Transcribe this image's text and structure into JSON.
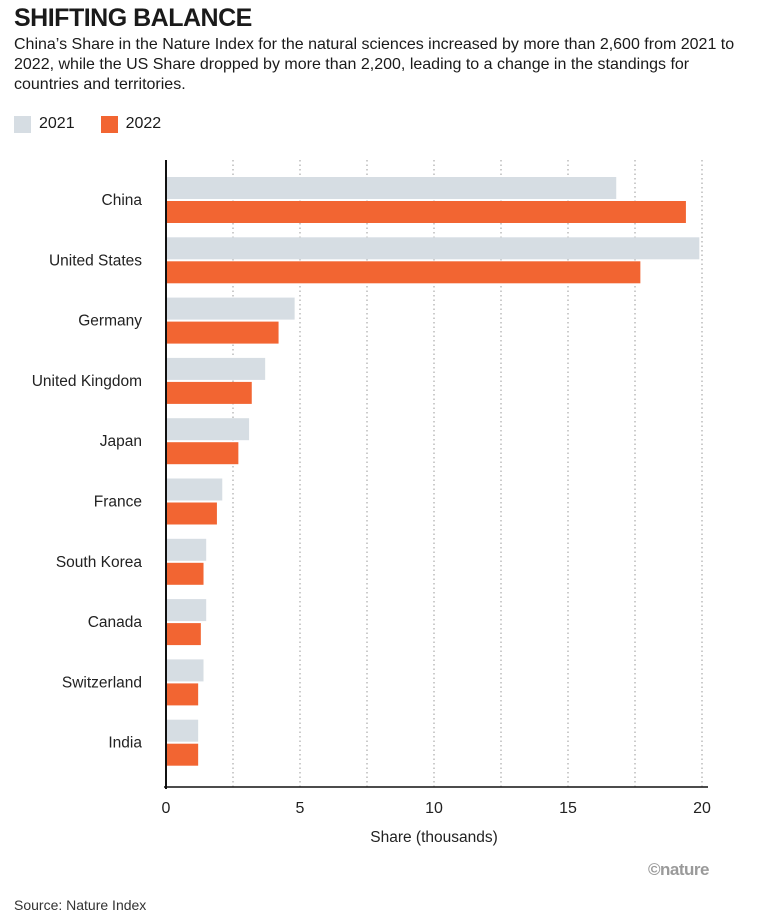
{
  "header": {
    "title": "SHIFTING BALANCE",
    "subtitle": "China’s Share in the Nature Index for the natural sciences increased by more than 2,600 from 2021 to 2022, while the US Share dropped by more than 2,200, leading to a change in the standings for countries and territories."
  },
  "chart_data": {
    "type": "bar",
    "orientation": "horizontal",
    "categories": [
      "China",
      "United States",
      "Germany",
      "United Kingdom",
      "Japan",
      "France",
      "South Korea",
      "Canada",
      "Switzerland",
      "India"
    ],
    "series": [
      {
        "name": "2021",
        "color": "#d6dde3",
        "values": [
          16.8,
          19.9,
          4.8,
          3.7,
          3.1,
          2.1,
          1.5,
          1.5,
          1.4,
          1.2
        ]
      },
      {
        "name": "2022",
        "color": "#f26532",
        "values": [
          19.4,
          17.7,
          4.2,
          3.2,
          2.7,
          1.9,
          1.4,
          1.3,
          1.2,
          1.2
        ]
      }
    ],
    "xlabel": "Share (thousands)",
    "xlim": [
      0,
      20
    ],
    "xticks": [
      0,
      5,
      10,
      15,
      20
    ],
    "grid": "vertical dotted",
    "legend_position": "top-left"
  },
  "footer": {
    "source": "Source: Nature Index",
    "brand": "©nature"
  }
}
